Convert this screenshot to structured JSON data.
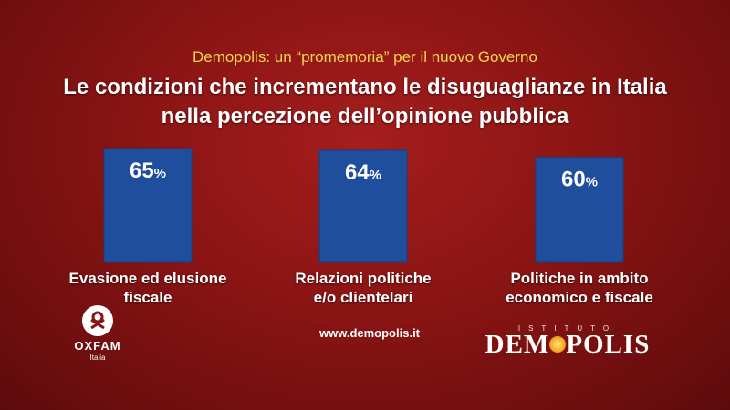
{
  "header": {
    "supertitle": "Demopolis: un “promemoria” per il nuovo Governo",
    "title_line1": "Le condizioni che incrementano le disuguaglianze in Italia",
    "title_line2": "nella percezione dell’opinione pubblica"
  },
  "chart_data": {
    "type": "bar",
    "categories": [
      "Evasione ed elusione fiscale",
      "Relazioni politiche e/o clientelari",
      "Politiche in ambito economico e fiscale"
    ],
    "category_lines": [
      [
        "Evasione ed elusione",
        "fiscale"
      ],
      [
        "Relazioni politiche",
        "e/o clientelari"
      ],
      [
        "Politiche in ambito",
        "economico e fiscale"
      ]
    ],
    "values": [
      65,
      64,
      60
    ],
    "value_labels": [
      "65",
      "64",
      "60"
    ],
    "unit": "%",
    "bar_color": "#1f4e9c"
  },
  "footer": {
    "website": "www.demopolis.it",
    "oxfam": {
      "word": "OXFAM",
      "sub": "Italia"
    },
    "demopolis": {
      "istituto": "ISTITUTO",
      "name_a": "DEM",
      "name_b": "POLIS"
    }
  }
}
